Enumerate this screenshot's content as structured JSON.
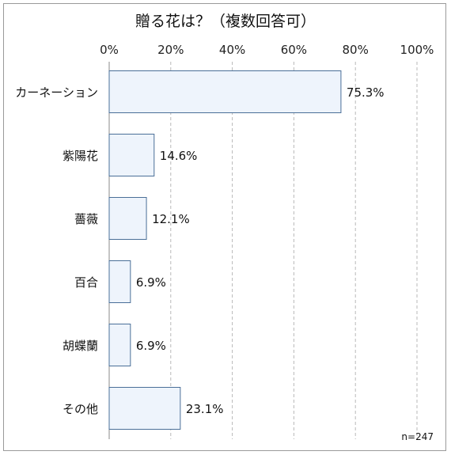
{
  "chart_data": {
    "type": "bar",
    "orientation": "horizontal",
    "title": "贈る花は？（複数回答可）",
    "categories": [
      "カーネーション",
      "紫陽花",
      "薔薇",
      "百合",
      "胡蝶蘭",
      "その他"
    ],
    "values": [
      75.3,
      14.6,
      12.1,
      6.9,
      6.9,
      23.1
    ],
    "value_labels": [
      "75.3%",
      "14.6%",
      "12.1%",
      "6.9%",
      "6.9%",
      "23.1%"
    ],
    "xlim": [
      0,
      100
    ],
    "xticks": [
      0,
      20,
      40,
      60,
      80,
      100
    ],
    "xtick_labels": [
      "0%",
      "20%",
      "40%",
      "60%",
      "80%",
      "100%"
    ],
    "axis_position": "top",
    "grid": true,
    "note": "n=247",
    "colors": {
      "bar_fill": "#eef4fc",
      "bar_stroke": "#4a6f98",
      "grid": "#b8b8b8"
    }
  }
}
